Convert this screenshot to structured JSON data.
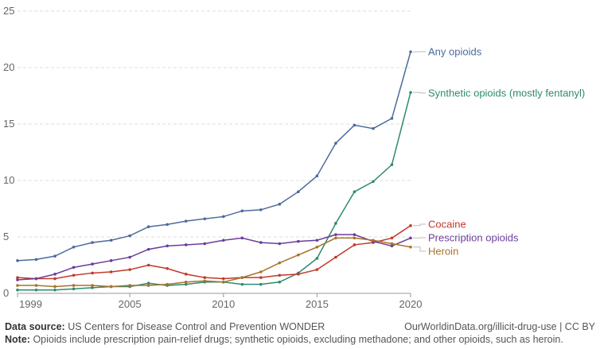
{
  "chart_data": {
    "type": "line",
    "title": "",
    "xlabel": "",
    "ylabel": "",
    "xlim": [
      1999,
      2020
    ],
    "ylim": [
      0,
      25
    ],
    "x_ticks": [
      "1999",
      "2005",
      "2010",
      "2015",
      "2020"
    ],
    "y_ticks": [
      "0",
      "5",
      "10",
      "15",
      "20",
      "25"
    ],
    "grid": "horizontal dashed",
    "legend": "line-end labels on right",
    "x": [
      1999,
      2000,
      2001,
      2002,
      2003,
      2004,
      2005,
      2006,
      2007,
      2008,
      2009,
      2010,
      2011,
      2012,
      2013,
      2014,
      2015,
      2016,
      2017,
      2018,
      2019,
      2020
    ],
    "series": [
      {
        "name": "Any opioids",
        "color": "#4c6a9c",
        "values": [
          2.9,
          3.0,
          3.3,
          4.1,
          4.5,
          4.7,
          5.1,
          5.9,
          6.1,
          6.4,
          6.6,
          6.8,
          7.3,
          7.4,
          7.9,
          9.0,
          10.4,
          13.3,
          14.9,
          14.6,
          15.5,
          21.4
        ]
      },
      {
        "name": "Synthetic opioids (mostly fentanyl)",
        "color": "#2e8b6e",
        "values": [
          0.3,
          0.3,
          0.3,
          0.4,
          0.5,
          0.6,
          0.6,
          0.9,
          0.7,
          0.8,
          1.0,
          1.0,
          0.8,
          0.8,
          1.0,
          1.8,
          3.1,
          6.2,
          9.0,
          9.9,
          11.4,
          17.8
        ]
      },
      {
        "name": "Cocaine",
        "color": "#c0392b",
        "values": [
          1.4,
          1.3,
          1.3,
          1.6,
          1.8,
          1.9,
          2.1,
          2.5,
          2.2,
          1.7,
          1.4,
          1.3,
          1.4,
          1.4,
          1.6,
          1.7,
          2.1,
          3.2,
          4.3,
          4.5,
          4.9,
          6.0
        ]
      },
      {
        "name": "Prescription opioids",
        "color": "#6a3d9a",
        "values": [
          1.2,
          1.3,
          1.7,
          2.3,
          2.6,
          2.9,
          3.2,
          3.9,
          4.2,
          4.3,
          4.4,
          4.7,
          4.9,
          4.5,
          4.4,
          4.6,
          4.7,
          5.2,
          5.2,
          4.6,
          4.2,
          4.9
        ]
      },
      {
        "name": "Heroin",
        "color": "#a8722c",
        "values": [
          0.7,
          0.7,
          0.6,
          0.7,
          0.7,
          0.6,
          0.7,
          0.7,
          0.8,
          1.0,
          1.1,
          1.0,
          1.4,
          1.9,
          2.7,
          3.4,
          4.1,
          4.9,
          4.9,
          4.7,
          4.4,
          4.1
        ]
      }
    ]
  },
  "footer": {
    "source_label": "Data source:",
    "source_text": "US Centers for Disease Control and Prevention WONDER",
    "url_text": "OurWorldinData.org/illicit-drug-use | CC BY",
    "note_label": "Note:",
    "note_text": "Opioids include prescription pain-relief drugs; synthetic opioids, excluding methadone; and other opioids, such as heroin."
  }
}
